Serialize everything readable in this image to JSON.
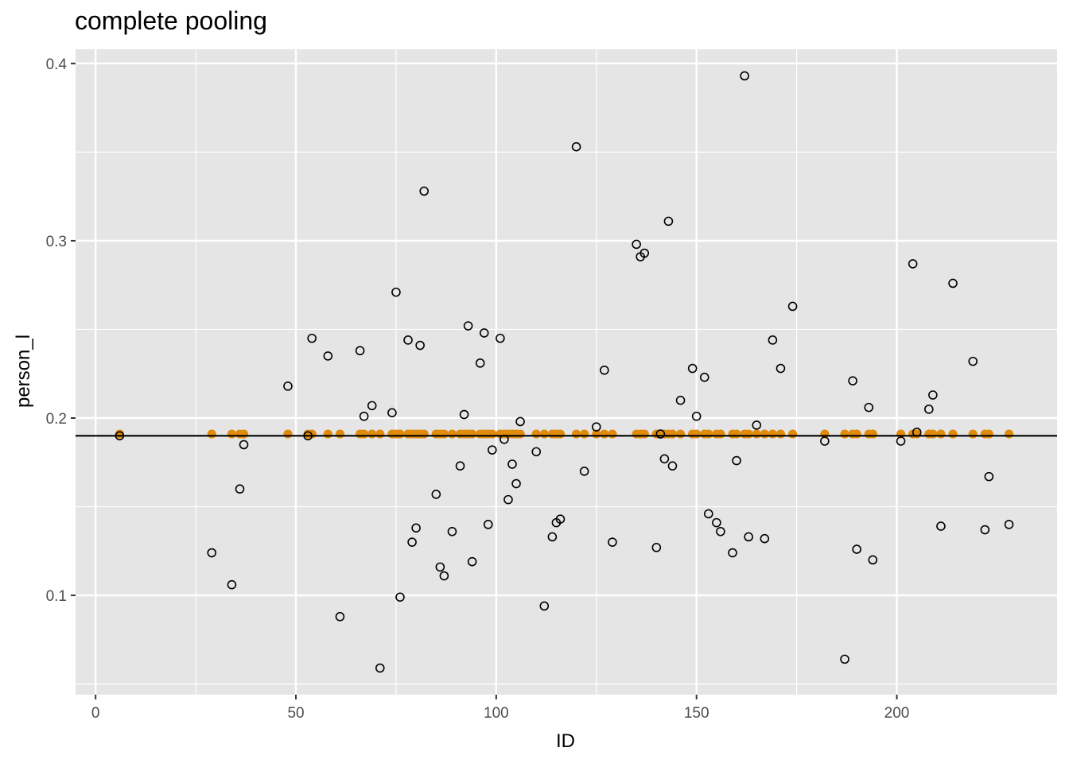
{
  "chart_data": {
    "type": "scatter",
    "title": "complete pooling",
    "xlabel": "ID",
    "ylabel": "person_l",
    "xlim": [
      -5,
      240
    ],
    "ylim": [
      0.044,
      0.408
    ],
    "x_ticks": [
      0,
      50,
      100,
      150,
      200
    ],
    "x_tick_labels": [
      "0",
      "50",
      "100",
      "150",
      "200"
    ],
    "y_ticks": [
      0.1,
      0.2,
      0.3,
      0.4
    ],
    "y_tick_labels": [
      "0.1",
      "0.2",
      "0.3",
      "0.4"
    ],
    "grid": true,
    "reference_line": 0.19,
    "pooled_value": 0.191,
    "colors": {
      "panel": "#e5e5e5",
      "grid": "#ffffff",
      "pooled": "#e08b0c",
      "observed": "#000000",
      "line": "#000000"
    },
    "series": [
      {
        "marker": "hollow-circle",
        "points": [
          [
            6,
            0.19
          ],
          [
            29,
            0.124
          ],
          [
            34,
            0.106
          ],
          [
            36,
            0.16
          ],
          [
            37,
            0.185
          ],
          [
            48,
            0.218
          ],
          [
            53,
            0.19
          ],
          [
            54,
            0.245
          ],
          [
            58,
            0.235
          ],
          [
            61,
            0.088
          ],
          [
            66,
            0.238
          ],
          [
            67,
            0.201
          ],
          [
            69,
            0.207
          ],
          [
            71,
            0.059
          ],
          [
            74,
            0.203
          ],
          [
            75,
            0.271
          ],
          [
            76,
            0.099
          ],
          [
            78,
            0.244
          ],
          [
            79,
            0.13
          ],
          [
            80,
            0.138
          ],
          [
            81,
            0.241
          ],
          [
            82,
            0.328
          ],
          [
            85,
            0.157
          ],
          [
            86,
            0.116
          ],
          [
            87,
            0.111
          ],
          [
            89,
            0.136
          ],
          [
            91,
            0.173
          ],
          [
            92,
            0.202
          ],
          [
            93,
            0.252
          ],
          [
            94,
            0.119
          ],
          [
            96,
            0.231
          ],
          [
            97,
            0.248
          ],
          [
            98,
            0.14
          ],
          [
            99,
            0.182
          ],
          [
            101,
            0.245
          ],
          [
            102,
            0.188
          ],
          [
            103,
            0.154
          ],
          [
            104,
            0.174
          ],
          [
            105,
            0.163
          ],
          [
            106,
            0.198
          ],
          [
            110,
            0.181
          ],
          [
            112,
            0.094
          ],
          [
            114,
            0.133
          ],
          [
            115,
            0.141
          ],
          [
            116,
            0.143
          ],
          [
            120,
            0.353
          ],
          [
            122,
            0.17
          ],
          [
            125,
            0.195
          ],
          [
            127,
            0.227
          ],
          [
            129,
            0.13
          ],
          [
            135,
            0.298
          ],
          [
            136,
            0.291
          ],
          [
            137,
            0.293
          ],
          [
            140,
            0.127
          ],
          [
            141,
            0.191
          ],
          [
            142,
            0.177
          ],
          [
            143,
            0.311
          ],
          [
            144,
            0.173
          ],
          [
            146,
            0.21
          ],
          [
            149,
            0.228
          ],
          [
            150,
            0.201
          ],
          [
            152,
            0.223
          ],
          [
            153,
            0.146
          ],
          [
            155,
            0.141
          ],
          [
            156,
            0.136
          ],
          [
            159,
            0.124
          ],
          [
            160,
            0.176
          ],
          [
            162,
            0.393
          ],
          [
            163,
            0.133
          ],
          [
            165,
            0.196
          ],
          [
            167,
            0.132
          ],
          [
            169,
            0.244
          ],
          [
            171,
            0.228
          ],
          [
            174,
            0.263
          ],
          [
            182,
            0.187
          ],
          [
            187,
            0.064
          ],
          [
            189,
            0.221
          ],
          [
            190,
            0.126
          ],
          [
            193,
            0.206
          ],
          [
            194,
            0.12
          ],
          [
            201,
            0.187
          ],
          [
            204,
            0.287
          ],
          [
            205,
            0.192
          ],
          [
            208,
            0.205
          ],
          [
            209,
            0.213
          ],
          [
            211,
            0.139
          ],
          [
            214,
            0.276
          ],
          [
            219,
            0.232
          ],
          [
            222,
            0.137
          ],
          [
            223,
            0.167
          ],
          [
            228,
            0.14
          ]
        ]
      },
      {
        "marker": "filled-circle",
        "y": 0.191,
        "x": [
          6,
          29,
          34,
          36,
          37,
          48,
          53,
          54,
          58,
          61,
          66,
          67,
          69,
          71,
          74,
          75,
          76,
          78,
          79,
          80,
          81,
          82,
          85,
          86,
          87,
          89,
          91,
          92,
          93,
          94,
          96,
          97,
          98,
          99,
          101,
          102,
          103,
          104,
          105,
          106,
          110,
          112,
          114,
          115,
          116,
          120,
          122,
          125,
          127,
          129,
          135,
          136,
          137,
          140,
          141,
          142,
          143,
          144,
          146,
          149,
          150,
          152,
          153,
          155,
          156,
          159,
          160,
          162,
          163,
          165,
          167,
          169,
          171,
          174,
          182,
          187,
          189,
          190,
          193,
          194,
          201,
          204,
          205,
          208,
          209,
          211,
          214,
          219,
          222,
          223,
          228
        ]
      }
    ]
  }
}
